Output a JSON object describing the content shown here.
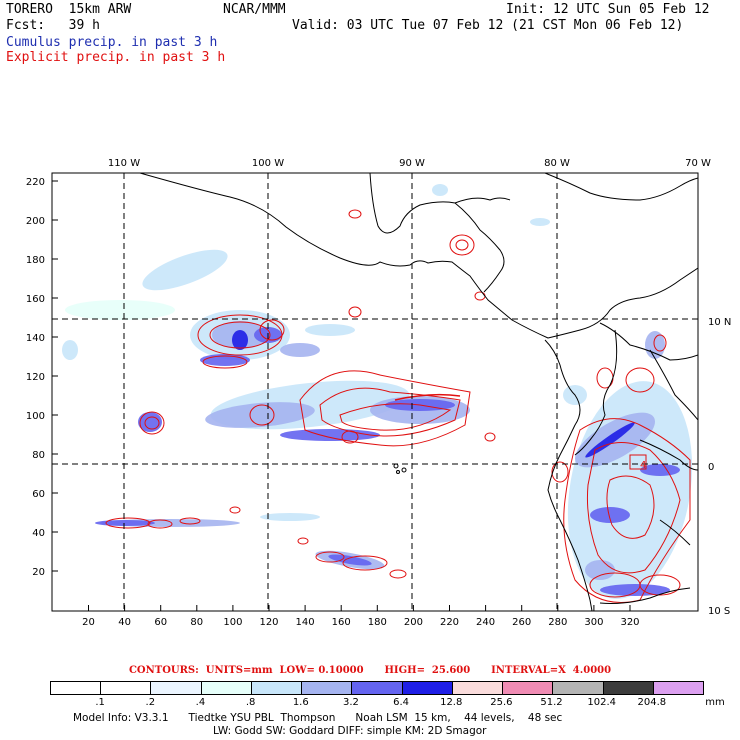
{
  "header": {
    "model": "TORERO  15km ARW",
    "org": "NCAR/MMM",
    "init": "Init: 12 UTC Sun 05 Feb 12",
    "fcst": "Fcst:   39 h",
    "valid": "Valid: 03 UTC Tue 07 Feb 12 (21 CST Mon 06 Feb 12)",
    "field1": "Cumulus precip. in past 3 h",
    "field2": "Explicit precip. in past 3 h"
  },
  "map": {
    "lon_labels": [
      "110 W",
      "100 W",
      "90 W",
      "80 W",
      "70 W"
    ],
    "lat_labels": [
      "10 N",
      "0",
      "10 S"
    ],
    "y_ticks": [
      "220",
      "200",
      "180",
      "160",
      "140",
      "120",
      "100",
      "80",
      "60",
      "40",
      "20"
    ],
    "x_ticks": [
      "20",
      "40",
      "60",
      "80",
      "100",
      "120",
      "140",
      "160",
      "180",
      "200",
      "220",
      "240",
      "260",
      "280",
      "300",
      "320"
    ],
    "box_label": "4",
    "colors": {
      "coast": "#000000",
      "contour": "#e01010",
      "cumulus": "#2020e0"
    }
  },
  "contours_line": "CONTOURS:  UNITS=mm  LOW= 0.10000      HIGH=  25.600      INTERVAL=X  4.0000",
  "colorbar": {
    "labels": [
      ".1",
      ".2",
      ".4",
      ".8",
      "1.6",
      "3.2",
      "6.4",
      "12.8",
      "25.6",
      "51.2",
      "102.4",
      "204.8"
    ],
    "unit": "mm",
    "colors": [
      "#ffffff",
      "#ffffff",
      "#ebf5ff",
      "#e6fffa",
      "#c8e6fa",
      "#a5b4f0",
      "#6464f0",
      "#1e1ee6",
      "#fadcdc",
      "#f08cb4",
      "#b4b4b4",
      "#3c3c3c",
      "#dca0f0"
    ]
  },
  "model_info": {
    "line1": "Model Info: V3.3.1      Tiedtke YSU PBL  Thompson      Noah LSM  15 km,    44 levels,    48 sec",
    "line2": "LW: Godd SW: Goddard DIFF: simple KM: 2D Smagor"
  }
}
